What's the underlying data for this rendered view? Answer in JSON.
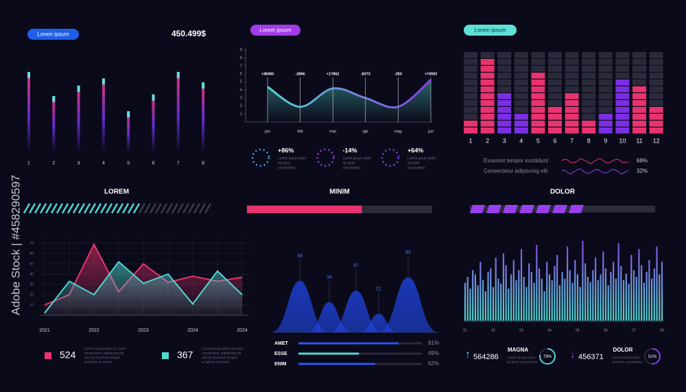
{
  "watermark": "Adobe Stock | #458290597",
  "chart_data": [
    {
      "type": "bar",
      "pill": "Lorem ipsum",
      "pill_color": "#1f5ee8",
      "headline": "450.499$",
      "title": "LOREM",
      "categories": [
        "1",
        "2",
        "3",
        "4",
        "5",
        "6",
        "7",
        "8"
      ],
      "values": [
        100,
        70,
        83,
        92,
        51,
        72,
        100,
        87
      ],
      "ylim": [
        0,
        100
      ],
      "color": "#e8336f",
      "color2": "#6a2fe0",
      "cap_color": "#5fe3dc",
      "progress": 60,
      "progress_color": "#4fd8d0"
    },
    {
      "type": "line",
      "pill": "Lorem ipsum",
      "pill_color": "#a23be8",
      "categories": [
        "jan",
        "feb",
        "mar",
        "apr",
        "may",
        "jun"
      ],
      "values": [
        4.4,
        1.9,
        4.2,
        3.0,
        1.9,
        5.3
      ],
      "ylim": [
        0,
        9
      ],
      "yticks": [
        1,
        2,
        3,
        4,
        5,
        6,
        7,
        8,
        9
      ],
      "annotations": [
        "+38400",
        "-2866",
        "+17862",
        "-8373",
        "-350",
        "+74593"
      ],
      "color": "#4fd8d0",
      "color2": "#8a3fe8",
      "stats": [
        {
          "value": 86,
          "value_label": "+86%",
          "color": "#4fa8e0",
          "text": [
            "Lorem ipsum dolor",
            "sit amet",
            "consectetur"
          ]
        },
        {
          "value": -14,
          "value_label": "-14%",
          "color": "#a040e0",
          "text": [
            "Lorem ipsum dolor",
            "sit amet",
            "consectetur"
          ]
        },
        {
          "value": 64,
          "value_label": "+64%",
          "color": "#7a4fe0",
          "text": [
            "Lorem ipsum dolor",
            "sit amet",
            "consectetur"
          ]
        }
      ],
      "title": "MINIM",
      "progress": 62,
      "progress_color": "#e8336f"
    },
    {
      "type": "segmented_bar",
      "pill": "Lorem ipsum",
      "pill_color": "#5ee0d6",
      "categories": [
        "1",
        "2",
        "3",
        "4",
        "5",
        "6",
        "7",
        "8",
        "9",
        "10",
        "11",
        "12"
      ],
      "values": [
        2,
        11,
        6,
        3,
        9,
        4,
        6,
        2,
        3,
        8,
        7,
        4
      ],
      "ylim": [
        0,
        12
      ],
      "colors": [
        "#e8336f",
        "#e8336f",
        "#7a2fe3",
        "#7a2fe3",
        "#e8336f",
        "#e8336f",
        "#e8336f",
        "#e8336f",
        "#7a2fe3",
        "#7a2fe3",
        "#e8336f",
        "#e8336f"
      ],
      "rows": {
        "names": [
          "Eiusmod tempor incididunt",
          "Consectetur adipiscing elit"
        ],
        "values": [
          68,
          32
        ],
        "value_labels": [
          "68%",
          "32%"
        ],
        "colors": [
          "#e8336f",
          "#8a3fe8"
        ]
      },
      "title": "DOLOR",
      "progress": 63,
      "progress_color": "#9a3ff0"
    },
    {
      "type": "area",
      "categories": [
        "2021",
        null,
        "2022",
        null,
        "2023",
        null,
        "2024",
        null,
        "2024"
      ],
      "ylim": [
        0,
        70
      ],
      "yticks": [
        10,
        20,
        30,
        40,
        50,
        60,
        70
      ],
      "grid": true,
      "series": [
        {
          "color": "#e8336f",
          "values": [
            10,
            20,
            69,
            23,
            50,
            32,
            38,
            33,
            37
          ]
        },
        {
          "color": "#4fd8d0",
          "values": [
            2,
            33,
            20,
            52,
            31,
            40,
            11,
            43,
            20
          ]
        }
      ],
      "stats": [
        {
          "value": 524,
          "color": "#e8336f",
          "text": [
            "Lorem ipsum dolor sit amet",
            "consectetur adipiscing elit",
            "sed do eiusmod tempor",
            "ut labore et dolore"
          ]
        },
        {
          "value": 367,
          "color": "#4fd8d0",
          "text": [
            "Lorem ipsum dolor sit amet",
            "consectetur adipiscing elit",
            "sed do eiusmod tempor",
            "ut labore et dolore"
          ]
        }
      ]
    },
    {
      "type": "mountain",
      "values": [
        58,
        34,
        47,
        21,
        62
      ],
      "ylim": [
        0,
        80
      ],
      "color": "#2046e8",
      "label_color": "#4a7dff",
      "bars": {
        "categories": [
          "AMET",
          "ESSE",
          "ENIM"
        ],
        "values": [
          81,
          49,
          62
        ],
        "value_labels": [
          "81%",
          "49%",
          "62%"
        ],
        "xlim": [
          0,
          100
        ],
        "colors": [
          "#2a56f0",
          "#4fd8d0",
          "#2a56f0"
        ]
      }
    },
    {
      "type": "dense_bar",
      "categories": [
        "01",
        null,
        null,
        null,
        null,
        null,
        null,
        null,
        null,
        null,
        null,
        "02",
        null,
        null,
        null,
        null,
        null,
        null,
        null,
        null,
        null,
        null,
        "03",
        null,
        null,
        null,
        null,
        null,
        null,
        null,
        null,
        null,
        null,
        "04",
        null,
        null,
        null,
        null,
        null,
        null,
        null,
        null,
        null,
        null,
        "05",
        null,
        null,
        null,
        null,
        null,
        null,
        null,
        null,
        null,
        null,
        "06",
        null,
        null,
        null,
        null,
        null,
        null,
        null,
        null,
        null,
        null,
        "07",
        null,
        null,
        null,
        null,
        null,
        null,
        null,
        null,
        null,
        null,
        "08"
      ],
      "values": [
        45,
        52,
        38,
        60,
        55,
        42,
        70,
        48,
        35,
        58,
        62,
        40,
        75,
        50,
        44,
        80,
        66,
        38,
        55,
        72,
        48,
        60,
        85,
        52,
        40,
        68,
        58,
        45,
        90,
        62,
        50,
        35,
        70,
        55,
        48,
        65,
        78,
        42,
        58,
        50,
        88,
        60,
        45,
        72,
        55,
        40,
        95,
        68,
        52,
        46,
        60,
        75,
        48,
        55,
        82,
        62,
        42,
        58,
        70,
        50,
        92,
        65,
        48,
        56,
        44,
        78,
        60,
        52,
        85,
        66,
        45,
        58,
        72,
        50,
        62,
        88,
        55,
        70
      ],
      "ylim": [
        0,
        100
      ],
      "color": "#4fd8d0",
      "color2": "#8a3fe8",
      "stats": [
        {
          "arrow": "↑",
          "value": 564286,
          "label": "MAGNA",
          "percent": 78,
          "percent_label": "78%",
          "color": "#4fd8d0",
          "text": [
            "Lorem ipsum dolor",
            "sit amet consectetur"
          ]
        },
        {
          "arrow": "↓",
          "value": 456371,
          "label": "DOLOR",
          "percent": 51,
          "percent_label": "51%",
          "color": "#8a3fe8",
          "text": [
            "Lorem ipsum dolor",
            "sit amet consectetur"
          ]
        }
      ]
    }
  ]
}
